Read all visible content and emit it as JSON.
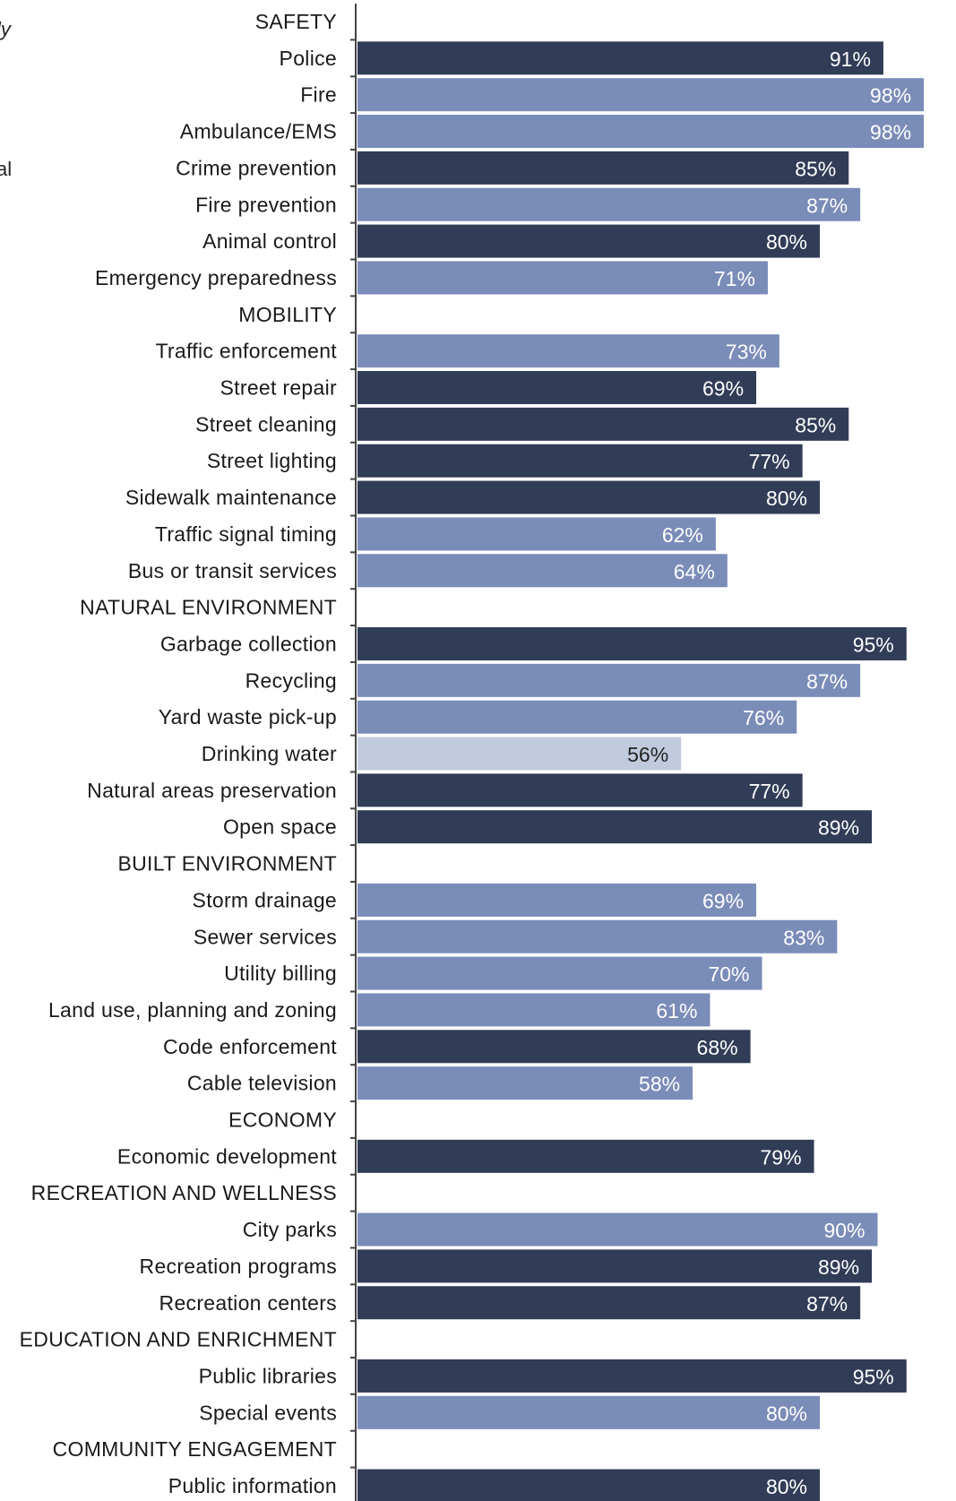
{
  "clipped_text": [
    "ly",
    "al"
  ],
  "colors": {
    "much_above": "#313c57",
    "above": "#7a8cb8",
    "similar": "#c1c9dc",
    "axis": "#444444",
    "label_dark_bar": "#ffffff",
    "label_light_bar": "#222222"
  },
  "chart_data": {
    "type": "bar",
    "orientation": "horizontal",
    "xlim": [
      0,
      100
    ],
    "value_suffix": "%",
    "rows": [
      {
        "label": "SAFETY",
        "header": true
      },
      {
        "label": "Police",
        "value": 91,
        "tone": "much_above"
      },
      {
        "label": "Fire",
        "value": 98,
        "tone": "above"
      },
      {
        "label": "Ambulance/EMS",
        "value": 98,
        "tone": "above"
      },
      {
        "label": "Crime prevention",
        "value": 85,
        "tone": "much_above"
      },
      {
        "label": "Fire prevention",
        "value": 87,
        "tone": "above"
      },
      {
        "label": "Animal control",
        "value": 80,
        "tone": "much_above"
      },
      {
        "label": "Emergency preparedness",
        "value": 71,
        "tone": "above"
      },
      {
        "label": "MOBILITY",
        "header": true
      },
      {
        "label": "Traffic enforcement",
        "value": 73,
        "tone": "above"
      },
      {
        "label": "Street repair",
        "value": 69,
        "tone": "much_above"
      },
      {
        "label": "Street cleaning",
        "value": 85,
        "tone": "much_above"
      },
      {
        "label": "Street lighting",
        "value": 77,
        "tone": "much_above"
      },
      {
        "label": "Sidewalk maintenance",
        "value": 80,
        "tone": "much_above"
      },
      {
        "label": "Traffic signal timing",
        "value": 62,
        "tone": "above"
      },
      {
        "label": "Bus or transit services",
        "value": 64,
        "tone": "above"
      },
      {
        "label": "NATURAL ENVIRONMENT",
        "header": true
      },
      {
        "label": "Garbage collection",
        "value": 95,
        "tone": "much_above"
      },
      {
        "label": "Recycling",
        "value": 87,
        "tone": "above"
      },
      {
        "label": "Yard waste pick-up",
        "value": 76,
        "tone": "above"
      },
      {
        "label": "Drinking water",
        "value": 56,
        "tone": "similar"
      },
      {
        "label": "Natural areas preservation",
        "value": 77,
        "tone": "much_above"
      },
      {
        "label": "Open space",
        "value": 89,
        "tone": "much_above"
      },
      {
        "label": "BUILT ENVIRONMENT",
        "header": true
      },
      {
        "label": "Storm drainage",
        "value": 69,
        "tone": "above"
      },
      {
        "label": "Sewer services",
        "value": 83,
        "tone": "above"
      },
      {
        "label": "Utility billing",
        "value": 70,
        "tone": "above"
      },
      {
        "label": "Land use, planning and zoning",
        "value": 61,
        "tone": "above"
      },
      {
        "label": "Code enforcement",
        "value": 68,
        "tone": "much_above"
      },
      {
        "label": "Cable television",
        "value": 58,
        "tone": "above"
      },
      {
        "label": "ECONOMY",
        "header": true
      },
      {
        "label": "Economic development",
        "value": 79,
        "tone": "much_above"
      },
      {
        "label": "RECREATION AND WELLNESS",
        "header": true
      },
      {
        "label": "City parks",
        "value": 90,
        "tone": "above"
      },
      {
        "label": "Recreation programs",
        "value": 89,
        "tone": "much_above"
      },
      {
        "label": "Recreation centers",
        "value": 87,
        "tone": "much_above"
      },
      {
        "label": "EDUCATION AND ENRICHMENT",
        "header": true
      },
      {
        "label": "Public libraries",
        "value": 95,
        "tone": "much_above"
      },
      {
        "label": "Special events",
        "value": 80,
        "tone": "above"
      },
      {
        "label": "COMMUNITY ENGAGEMENT",
        "header": true
      },
      {
        "label": "Public information",
        "value": 80,
        "tone": "much_above"
      }
    ]
  }
}
